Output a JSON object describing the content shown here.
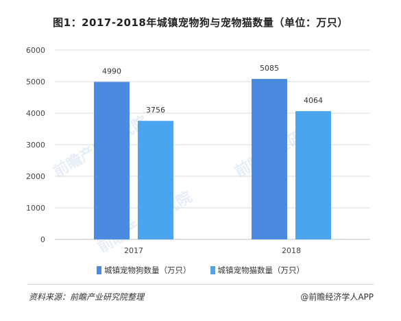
{
  "title": "图1：2017-2018年城镇宠物狗与宠物猫数量（单位：万只）",
  "source_text": "资料来源：前瞻产业研究院整理",
  "brand_text": "@前瞻经济学人APP",
  "watermark_text": "前瞻产业研究院",
  "colors": {
    "dog": "#4a8be0",
    "cat": "#4ba4ee",
    "grid": "#d9d9d9",
    "axis": "#bfbfbf"
  },
  "chart_data": {
    "type": "bar",
    "title": "图1：2017-2018年城镇宠物狗与宠物猫数量（单位：万只）",
    "categories": [
      "2017",
      "2018"
    ],
    "series": [
      {
        "name": "城镇宠物狗数量（万只）",
        "values": [
          4990,
          5085
        ]
      },
      {
        "name": "城镇宠物猫数量（万只）",
        "values": [
          3756,
          4064
        ]
      }
    ],
    "xlabel": "",
    "ylabel": "",
    "ylim": [
      0,
      6000
    ],
    "yticks": [
      0,
      1000,
      2000,
      3000,
      4000,
      5000,
      6000
    ],
    "grid": true,
    "legend_position": "bottom"
  }
}
